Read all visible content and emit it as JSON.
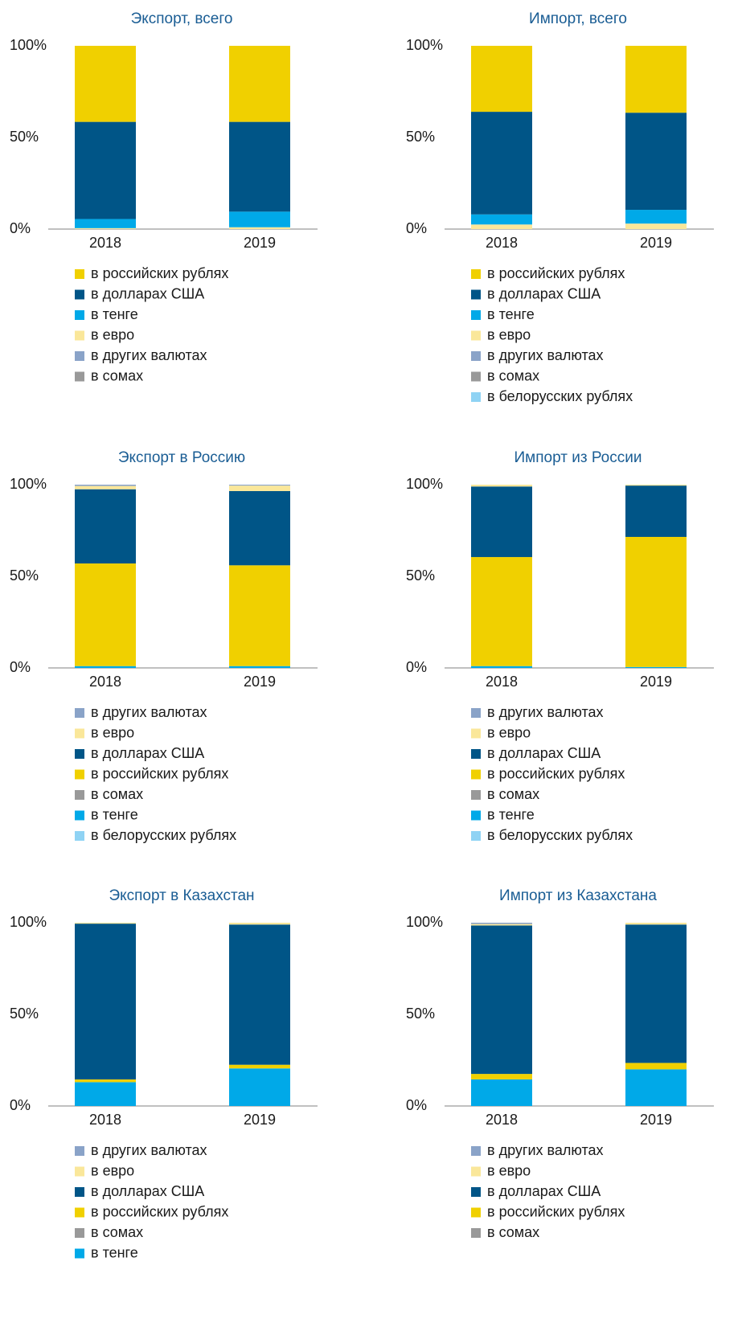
{
  "chart_data": [
    {
      "type": "stacked_bar",
      "title": "Экспорт, всего",
      "categories": [
        "2018",
        "2019"
      ],
      "ylim": [
        0,
        100
      ],
      "yticks": [
        {
          "value": 0,
          "label": "0%"
        },
        {
          "value": 50,
          "label": "50%"
        },
        {
          "value": 100,
          "label": "100%"
        }
      ],
      "series": [
        {
          "name": "в российских рублях",
          "color": "#f0d000",
          "values": [
            41.5,
            41.5
          ]
        },
        {
          "name": "в долларах США",
          "color": "#005587",
          "values": [
            53,
            49
          ]
        },
        {
          "name": "в тенге",
          "color": "#00a9e8",
          "values": [
            5,
            8.5
          ]
        },
        {
          "name": "в евро",
          "color": "#fae79a",
          "values": [
            0.5,
            1
          ]
        },
        {
          "name": "в других валютах",
          "color": "#8aa3c8",
          "values": [
            0,
            0
          ]
        },
        {
          "name": "в сомах",
          "color": "#999999",
          "values": [
            0,
            0
          ]
        }
      ]
    },
    {
      "type": "stacked_bar",
      "title": "Импорт, всего",
      "categories": [
        "2018",
        "2019"
      ],
      "ylim": [
        0,
        100
      ],
      "yticks": [
        {
          "value": 0,
          "label": "0%"
        },
        {
          "value": 50,
          "label": "50%"
        },
        {
          "value": 100,
          "label": "100%"
        }
      ],
      "series": [
        {
          "name": "в российских рублях",
          "color": "#f0d000",
          "values": [
            36,
            36.5
          ]
        },
        {
          "name": "в долларах США",
          "color": "#005587",
          "values": [
            56,
            53
          ]
        },
        {
          "name": "в тенге",
          "color": "#00a9e8",
          "values": [
            5.5,
            7.5
          ]
        },
        {
          "name": "в евро",
          "color": "#fae79a",
          "values": [
            2.5,
            3
          ]
        },
        {
          "name": "в других валютах",
          "color": "#8aa3c8",
          "values": [
            0,
            0
          ]
        },
        {
          "name": "в сомах",
          "color": "#999999",
          "values": [
            0,
            0
          ]
        },
        {
          "name": "в белорусских рублях",
          "color": "#8fd3f4",
          "values": [
            0,
            0
          ]
        }
      ]
    },
    {
      "type": "stacked_bar",
      "title": "Экспорт в Россию",
      "categories": [
        "2018",
        "2019"
      ],
      "ylim": [
        0,
        100
      ],
      "yticks": [
        {
          "value": 0,
          "label": "0%"
        },
        {
          "value": 50,
          "label": "50%"
        },
        {
          "value": 100,
          "label": "100%"
        }
      ],
      "series": [
        {
          "name": "в других валютах",
          "color": "#8aa3c8",
          "values": [
            0.7,
            0.5
          ]
        },
        {
          "name": "в евро",
          "color": "#fae79a",
          "values": [
            1.8,
            3
          ]
        },
        {
          "name": "в долларах США",
          "color": "#005587",
          "values": [
            40.5,
            40.5
          ]
        },
        {
          "name": "в российских рублях",
          "color": "#f0d000",
          "values": [
            56,
            55
          ]
        },
        {
          "name": "в сомах",
          "color": "#999999",
          "values": [
            0,
            0
          ]
        },
        {
          "name": "в тенге",
          "color": "#00a9e8",
          "values": [
            1,
            1
          ]
        },
        {
          "name": "в белорусских рублях",
          "color": "#8fd3f4",
          "values": [
            0,
            0
          ]
        }
      ]
    },
    {
      "type": "stacked_bar",
      "title": "Импорт из России",
      "categories": [
        "2018",
        "2019"
      ],
      "ylim": [
        0,
        100
      ],
      "yticks": [
        {
          "value": 0,
          "label": "0%"
        },
        {
          "value": 50,
          "label": "50%"
        },
        {
          "value": 100,
          "label": "100%"
        }
      ],
      "series": [
        {
          "name": "в других валютах",
          "color": "#8aa3c8",
          "values": [
            0,
            0
          ]
        },
        {
          "name": "в евро",
          "color": "#fae79a",
          "values": [
            1,
            0.5
          ]
        },
        {
          "name": "в долларах США",
          "color": "#005587",
          "values": [
            38.5,
            28
          ]
        },
        {
          "name": "в российских рублях",
          "color": "#f0d000",
          "values": [
            59.5,
            71
          ]
        },
        {
          "name": "в сомах",
          "color": "#999999",
          "values": [
            0,
            0
          ]
        },
        {
          "name": "в тенге",
          "color": "#00a9e8",
          "values": [
            1,
            0.5
          ]
        },
        {
          "name": "в белорусских рублях",
          "color": "#8fd3f4",
          "values": [
            0,
            0
          ]
        }
      ]
    },
    {
      "type": "stacked_bar",
      "title": "Экспорт в Казахстан",
      "categories": [
        "2018",
        "2019"
      ],
      "ylim": [
        0,
        100
      ],
      "yticks": [
        {
          "value": 0,
          "label": "0%"
        },
        {
          "value": 50,
          "label": "50%"
        },
        {
          "value": 100,
          "label": "100%"
        }
      ],
      "series": [
        {
          "name": "в других валютах",
          "color": "#8aa3c8",
          "values": [
            0,
            0
          ]
        },
        {
          "name": "в евро",
          "color": "#fae79a",
          "values": [
            0.5,
            1
          ]
        },
        {
          "name": "в долларах США",
          "color": "#005587",
          "values": [
            85,
            76.5
          ]
        },
        {
          "name": "в российских рублях",
          "color": "#f0d000",
          "values": [
            1.5,
            2
          ]
        },
        {
          "name": "в сомах",
          "color": "#999999",
          "values": [
            0,
            0
          ]
        },
        {
          "name": "в тенге",
          "color": "#00a9e8",
          "values": [
            13,
            20.5
          ]
        }
      ]
    },
    {
      "type": "stacked_bar",
      "title": "Импорт из Казахстана",
      "categories": [
        "2018",
        "2019"
      ],
      "ylim": [
        0,
        100
      ],
      "yticks": [
        {
          "value": 0,
          "label": "0%"
        },
        {
          "value": 50,
          "label": "50%"
        },
        {
          "value": 100,
          "label": "100%"
        }
      ],
      "series": [
        {
          "name": "в других валютах",
          "color": "#8aa3c8",
          "values": [
            0.7,
            0
          ]
        },
        {
          "name": "в евро",
          "color": "#fae79a",
          "values": [
            0.8,
            1
          ]
        },
        {
          "name": "в долларах США",
          "color": "#005587",
          "values": [
            81,
            75.5
          ]
        },
        {
          "name": "в российских рублях",
          "color": "#f0d000",
          "values": [
            3,
            3.5
          ]
        },
        {
          "name": "в сомах",
          "color": "#999999",
          "values": [
            0,
            0
          ]
        },
        {
          "color": "#00a9e8",
          "values": [
            14.5,
            20
          ]
        }
      ]
    }
  ]
}
